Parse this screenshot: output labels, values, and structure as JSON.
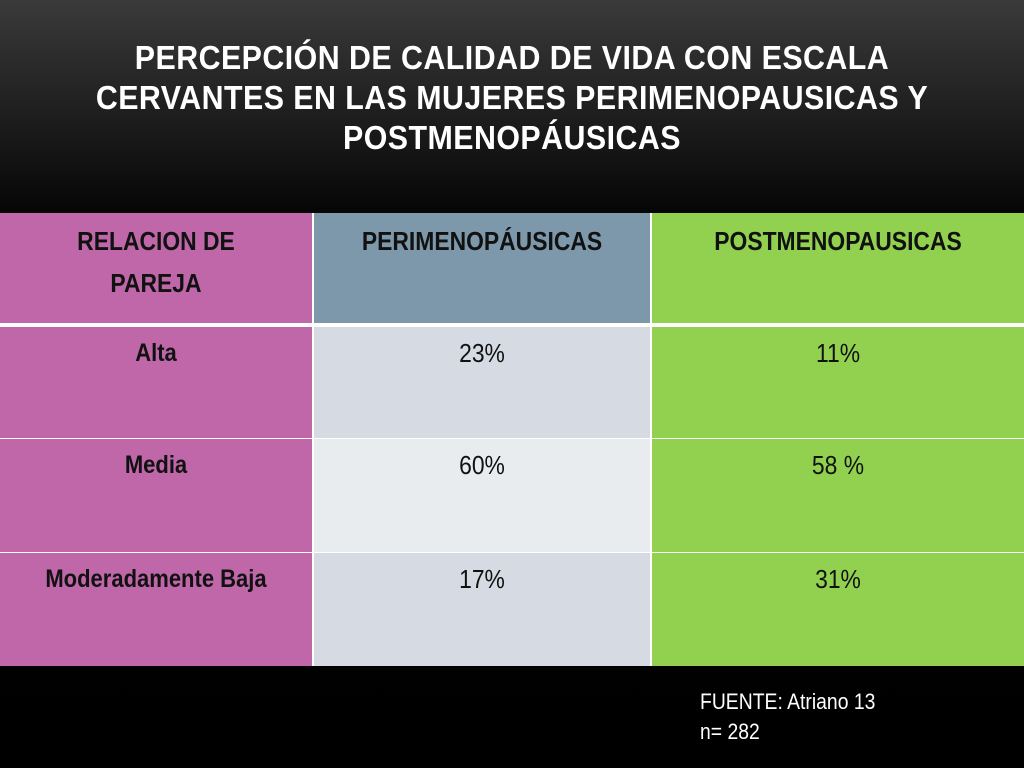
{
  "title": "PERCEPCIÓN DE CALIDAD DE VIDA CON ESCALA CERVANTES  EN LAS MUJERES  PERIMENOPAUSICAS Y POSTMENOPÁUSICAS",
  "table": {
    "headers": [
      "RELACION DE PAREJA",
      "PERIMENOPÁUSICAS",
      "POSTMENOPAUSICAS"
    ],
    "rows": [
      {
        "label": "Alta",
        "peri": "23%",
        "post": "11%"
      },
      {
        "label": "Media",
        "peri": "60%",
        "post": "58 %"
      },
      {
        "label": "Moderadamente Baja",
        "peri": "17%",
        "post": "31%"
      }
    ]
  },
  "colors": {
    "label_column": "#bf67a8",
    "peri_header": "#7d97ab",
    "post_column": "#92d14f",
    "peri_cell_a": "#d6dae2",
    "peri_cell_b": "#e9ecee",
    "background": "#000000"
  },
  "source": {
    "line1": "FUENTE: Atriano 13",
    "line2": "n= 282"
  }
}
